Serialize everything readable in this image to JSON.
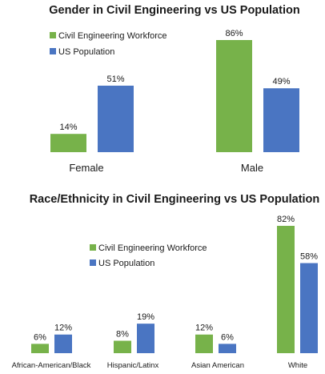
{
  "colors": {
    "workforce": "#77b24a",
    "population": "#4a75c2"
  },
  "chart_data": [
    {
      "type": "bar",
      "title": "Gender in Civil Engineering vs US Population",
      "categories": [
        "Female",
        "Male"
      ],
      "series": [
        {
          "name": "Civil Engineering Workforce",
          "values": [
            14,
            86
          ]
        },
        {
          "name": "US Population",
          "values": [
            51,
            49
          ]
        }
      ],
      "value_labels": [
        [
          "14%",
          "86%"
        ],
        [
          "51%",
          "49%"
        ]
      ],
      "ylim": [
        0,
        86
      ],
      "legend": "top-left",
      "grid": false
    },
    {
      "type": "bar",
      "title": "Race/Ethnicity in Civil Engineering vs US Population",
      "categories": [
        "African-American/Black",
        "Hispanic/Latinx",
        "Asian American",
        "White"
      ],
      "series": [
        {
          "name": "Civil Engineering Workforce",
          "values": [
            6,
            8,
            12,
            82
          ]
        },
        {
          "name": "US Population",
          "values": [
            12,
            19,
            6,
            58
          ]
        }
      ],
      "value_labels": [
        [
          "6%",
          "8%",
          "12%",
          "82%"
        ],
        [
          "12%",
          "19%",
          "6%",
          "58%"
        ]
      ],
      "ylim": [
        0,
        82
      ],
      "legend": "center-left",
      "grid": false
    }
  ]
}
